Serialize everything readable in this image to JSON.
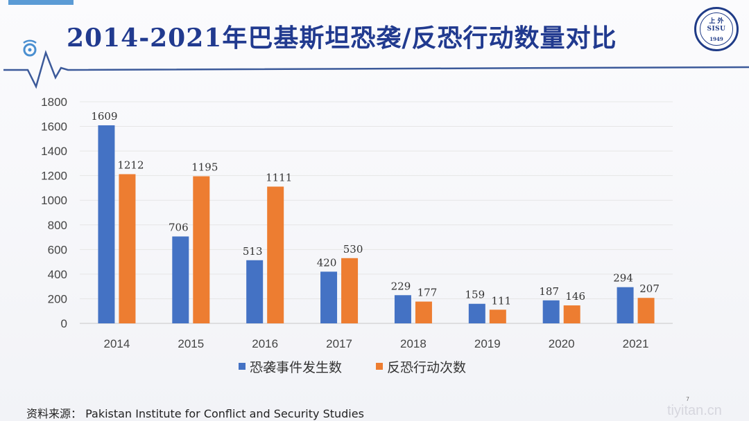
{
  "slide": {
    "title": "2014-2021年巴基斯坦恐袭/反恐行动数量对比",
    "logo": {
      "line1": "上 外",
      "line2": "SISU",
      "year": "1949"
    },
    "source_label": "资料来源：",
    "source_text": "Pakistan Institute for Conflict and Security Studies",
    "page_number": "7",
    "watermark": "tiyitan.cn"
  },
  "colors": {
    "title": "#213a8f",
    "series1": "#4472c4",
    "series2": "#ed7d31",
    "deco_line": "#3c5a9a"
  },
  "chart_data": {
    "type": "bar",
    "title": "",
    "categories": [
      "2014",
      "2015",
      "2016",
      "2017",
      "2018",
      "2019",
      "2020",
      "2021"
    ],
    "series": [
      {
        "name": "恐袭事件发生数",
        "values": [
          1609,
          706,
          513,
          420,
          229,
          159,
          187,
          294
        ]
      },
      {
        "name": "反恐行动次数",
        "values": [
          1212,
          1195,
          1111,
          530,
          177,
          111,
          146,
          207
        ]
      }
    ],
    "ylim": [
      0,
      1800
    ],
    "yticks": [
      "0",
      "200",
      "400",
      "600",
      "800",
      "1000",
      "1200",
      "1400",
      "1600",
      "1800"
    ],
    "grid": true,
    "legend": "bottom",
    "xlabel": "",
    "ylabel": ""
  }
}
